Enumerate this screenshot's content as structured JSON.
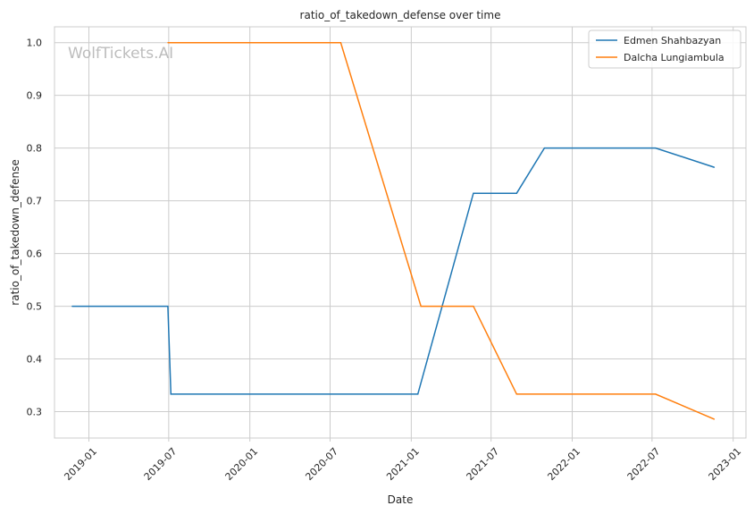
{
  "chart_data": {
    "type": "line",
    "title": "ratio_of_takedown_defense over time",
    "xlabel": "Date",
    "ylabel": "ratio_of_takedown_defense",
    "watermark": "WolfTickets.AI",
    "xlim": [
      "2018-10-15",
      "2023-01-30"
    ],
    "ylim": [
      0.25,
      1.03
    ],
    "x_ticks": [
      "2019-01-01",
      "2019-07-01",
      "2020-01-01",
      "2020-07-01",
      "2021-01-01",
      "2021-07-01",
      "2022-01-01",
      "2022-07-01",
      "2023-01-01"
    ],
    "x_tick_labels": [
      "2019-01",
      "2019-07",
      "2020-01",
      "2020-07",
      "2021-01",
      "2021-07",
      "2022-01",
      "2022-07",
      "2023-01"
    ],
    "y_ticks": [
      0.3,
      0.4,
      0.5,
      0.6,
      0.7,
      0.8,
      0.9,
      1.0
    ],
    "y_tick_labels": [
      "0.3",
      "0.4",
      "0.5",
      "0.6",
      "0.7",
      "0.8",
      "0.9",
      "1.0"
    ],
    "grid": true,
    "legend_position": "top-right",
    "series": [
      {
        "name": "Edmen Shahbazyan",
        "color": "#1f77b4",
        "x": [
          "2018-11-24",
          "2019-06-29",
          "2019-07-06",
          "2021-01-16",
          "2021-05-22",
          "2021-08-28",
          "2021-10-30",
          "2022-07-09",
          "2022-11-19"
        ],
        "y": [
          0.5,
          0.5,
          0.3333,
          0.3333,
          0.7143,
          0.7143,
          0.8,
          0.8,
          0.7636
        ]
      },
      {
        "name": "Dalcha Lungiambula",
        "color": "#ff7f0e",
        "x": [
          "2019-06-29",
          "2020-07-25",
          "2021-01-23",
          "2021-05-22",
          "2021-08-28",
          "2022-07-09",
          "2022-11-19"
        ],
        "y": [
          1.0,
          1.0,
          0.5,
          0.5,
          0.3333,
          0.3333,
          0.2857
        ]
      }
    ]
  }
}
